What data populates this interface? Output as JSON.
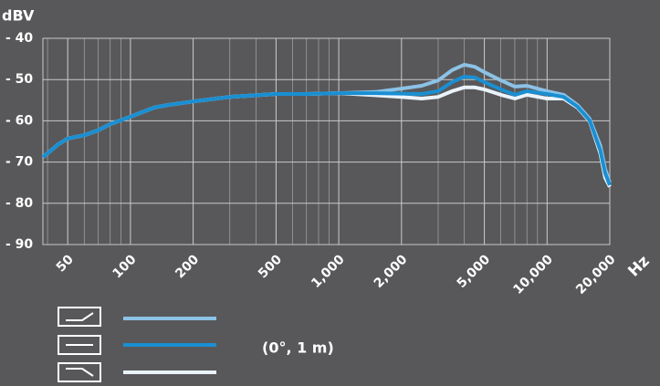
{
  "chart_data": {
    "type": "line",
    "y_label": "dBV",
    "x_label": "Hz",
    "annotation": "(0°, 1 m)",
    "x_scale": "log",
    "grid": true,
    "xlim": [
      38,
      20000
    ],
    "ylim": [
      -90,
      -40
    ],
    "xticks": [
      50,
      100,
      200,
      500,
      {
        "value": 1000,
        "label": "1,000"
      },
      {
        "value": 2000,
        "label": "2,000"
      },
      {
        "value": 5000,
        "label": "5,000"
      },
      {
        "value": 10000,
        "label": "10,000"
      },
      {
        "value": 20000,
        "label": "20,000"
      }
    ],
    "yticks": [
      {
        "value": -40,
        "label": "- 40"
      },
      {
        "value": -50,
        "label": "- 50"
      },
      {
        "value": -60,
        "label": "- 60"
      },
      {
        "value": -70,
        "label": "- 70"
      },
      {
        "value": -80,
        "label": "- 80"
      },
      {
        "value": -90,
        "label": "- 90"
      }
    ],
    "x": [
      38,
      45,
      50,
      60,
      70,
      80,
      100,
      130,
      150,
      200,
      300,
      500,
      700,
      1000,
      1500,
      2000,
      2500,
      3000,
      3500,
      4000,
      4500,
      5000,
      6000,
      7000,
      8000,
      10000,
      12000,
      14000,
      16000,
      18000,
      19000,
      20000
    ],
    "series": [
      {
        "color": "#eaf3fb",
        "values": [
          -68.8,
          -65.7,
          -64.3,
          -63.5,
          -62.3,
          -60.8,
          -59,
          -56.8,
          -56.2,
          -55.3,
          -54.2,
          -53.5,
          -53.5,
          -53.3,
          -53.8,
          -54.2,
          -54.6,
          -54.2,
          -52.8,
          -51.9,
          -51.9,
          -52.4,
          -53.7,
          -54.6,
          -53.7,
          -54.6,
          -54.6,
          -56.8,
          -60.1,
          -67.9,
          -73.8,
          -76
        ]
      },
      {
        "color": "#8cc2e6",
        "values": [
          -68.8,
          -65.7,
          -64.3,
          -63.5,
          -62.3,
          -60.8,
          -59,
          -56.8,
          -56.2,
          -55.3,
          -54.2,
          -53.5,
          -53.5,
          -53.3,
          -53,
          -52.2,
          -51.5,
          -50.2,
          -47.7,
          -46.4,
          -46.9,
          -48.2,
          -50.2,
          -51.7,
          -51.5,
          -52.8,
          -53.7,
          -56.2,
          -59.5,
          -66,
          -71.6,
          -75
        ]
      },
      {
        "color": "#1a8fd2",
        "values": [
          -68.8,
          -65.7,
          -64.3,
          -63.5,
          -62.3,
          -60.8,
          -59,
          -56.8,
          -56.2,
          -55.3,
          -54.2,
          -53.5,
          -53.5,
          -53.3,
          -53.3,
          -53.4,
          -53.5,
          -52.8,
          -50.6,
          -49.3,
          -49.5,
          -50.6,
          -52.4,
          -53.7,
          -52.8,
          -53.5,
          -54.2,
          -56.6,
          -59.9,
          -67.2,
          -72.7,
          -75.6
        ]
      }
    ]
  }
}
